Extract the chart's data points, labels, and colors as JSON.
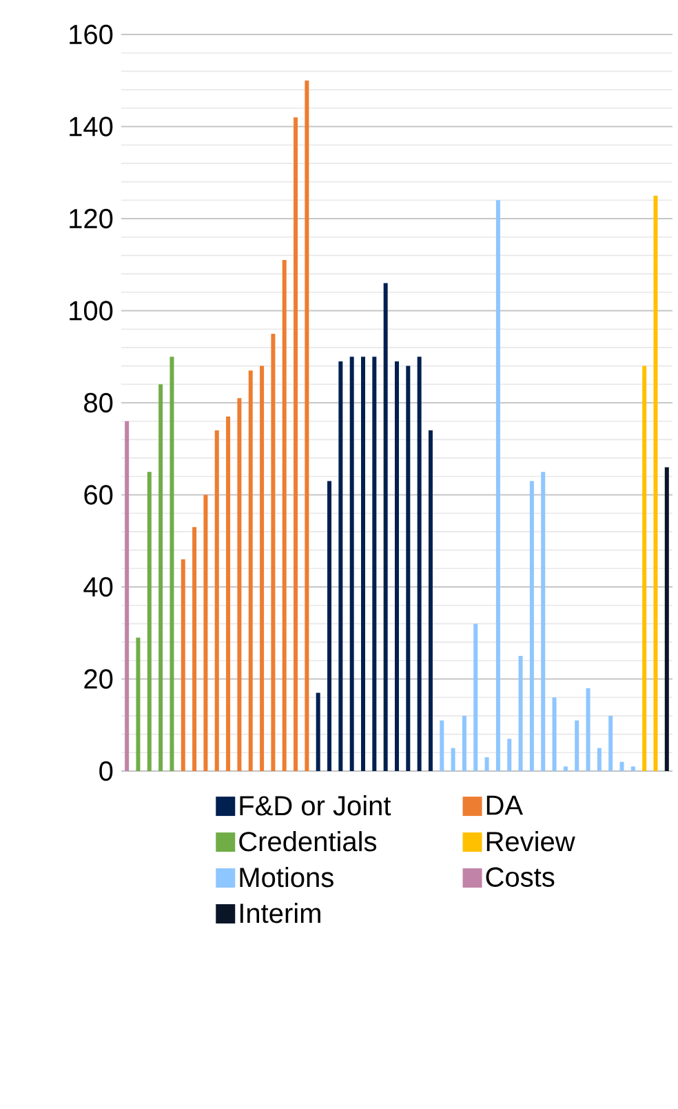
{
  "chart_data": {
    "type": "bar",
    "categories": [
      null,
      null,
      null,
      null,
      null,
      null,
      null,
      null,
      null,
      null,
      null,
      null,
      null,
      null,
      null,
      null,
      null,
      null,
      null,
      null,
      null,
      null,
      null,
      null,
      null,
      null,
      null,
      null,
      null,
      null,
      null,
      null,
      null,
      null,
      null,
      null,
      null,
      null,
      null,
      null,
      null,
      null,
      null,
      null,
      null,
      null,
      null,
      null,
      null
    ],
    "series": [
      {
        "name": "F&D or Joint",
        "color": "#002050",
        "values": [
          null,
          null,
          null,
          null,
          null,
          null,
          null,
          null,
          null,
          null,
          null,
          null,
          null,
          null,
          null,
          null,
          null,
          17,
          63,
          89,
          90,
          90,
          90,
          106,
          89,
          88,
          90,
          74,
          null,
          null,
          null,
          null,
          null,
          null,
          null,
          null,
          null,
          null,
          null,
          null,
          null,
          null,
          null,
          null,
          null,
          null,
          null,
          null,
          null
        ]
      },
      {
        "name": "DA",
        "color": "#ED7D31",
        "values": [
          null,
          null,
          null,
          null,
          null,
          46,
          53,
          60,
          74,
          77,
          81,
          87,
          88,
          95,
          111,
          142,
          150,
          null,
          null,
          null,
          null,
          null,
          null,
          null,
          null,
          null,
          null,
          null,
          null,
          null,
          null,
          null,
          null,
          null,
          null,
          null,
          null,
          null,
          null,
          null,
          null,
          null,
          null,
          null,
          null,
          null,
          null,
          null,
          null
        ]
      },
      {
        "name": "Credentials",
        "color": "#70AD47",
        "values": [
          null,
          29,
          65,
          84,
          90,
          null,
          null,
          null,
          null,
          null,
          null,
          null,
          null,
          null,
          null,
          null,
          null,
          null,
          null,
          null,
          null,
          null,
          null,
          null,
          null,
          null,
          null,
          null,
          null,
          null,
          null,
          null,
          null,
          null,
          null,
          null,
          null,
          null,
          null,
          null,
          null,
          null,
          null,
          null,
          null,
          null,
          null,
          null,
          null
        ]
      },
      {
        "name": "Review",
        "color": "#FFC000",
        "values": [
          null,
          null,
          null,
          null,
          null,
          null,
          null,
          null,
          null,
          null,
          null,
          null,
          null,
          null,
          null,
          null,
          null,
          null,
          null,
          null,
          null,
          null,
          null,
          null,
          null,
          null,
          null,
          null,
          null,
          null,
          null,
          null,
          null,
          null,
          null,
          null,
          null,
          null,
          null,
          null,
          null,
          null,
          null,
          null,
          null,
          null,
          88,
          125,
          null
        ]
      },
      {
        "name": "Motions",
        "color": "#8EC6FF",
        "values": [
          null,
          null,
          null,
          null,
          null,
          null,
          null,
          null,
          null,
          null,
          null,
          null,
          null,
          null,
          null,
          null,
          null,
          null,
          null,
          null,
          null,
          null,
          null,
          null,
          null,
          null,
          null,
          null,
          11,
          5,
          12,
          32,
          3,
          124,
          7,
          25,
          63,
          65,
          16,
          1,
          11,
          18,
          5,
          12,
          2,
          1,
          null,
          null,
          null
        ]
      },
      {
        "name": "Costs",
        "color": "#C183A8",
        "values": [
          76,
          null,
          null,
          null,
          null,
          null,
          null,
          null,
          null,
          null,
          null,
          null,
          null,
          null,
          null,
          null,
          null,
          null,
          null,
          null,
          null,
          null,
          null,
          null,
          null,
          null,
          null,
          null,
          null,
          null,
          null,
          null,
          null,
          null,
          null,
          null,
          null,
          null,
          null,
          null,
          null,
          null,
          null,
          null,
          null,
          null,
          null,
          null,
          null
        ]
      },
      {
        "name": "Interim",
        "color": "#0A1628",
        "values": [
          null,
          null,
          null,
          null,
          null,
          null,
          null,
          null,
          null,
          null,
          null,
          null,
          null,
          null,
          null,
          null,
          null,
          null,
          null,
          null,
          null,
          null,
          null,
          null,
          null,
          null,
          null,
          null,
          null,
          null,
          null,
          null,
          null,
          null,
          null,
          null,
          null,
          null,
          null,
          null,
          null,
          null,
          null,
          null,
          null,
          null,
          null,
          null,
          66
        ]
      }
    ],
    "ylim": [
      0,
      160
    ],
    "yticks": [
      0,
      20,
      40,
      60,
      80,
      100,
      120,
      140,
      160
    ],
    "grid": "y",
    "legend": "bottom"
  }
}
